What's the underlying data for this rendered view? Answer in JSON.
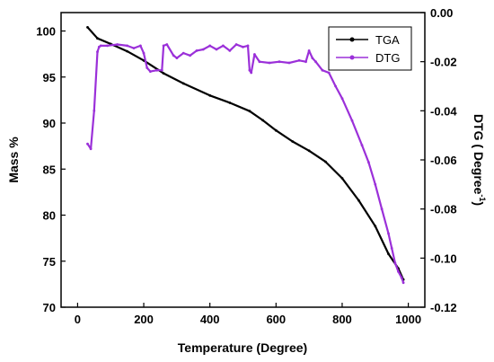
{
  "chart_data": {
    "type": "line",
    "xlabel": "Temperature (Degree)",
    "ylabel_left": "Mass %",
    "ylabel_right": "DTG ( Degree",
    "ylabel_right_sup": "-1",
    "ylabel_right_close": ")",
    "xlim": [
      -50,
      1050
    ],
    "ylim_left": [
      70,
      102
    ],
    "ylim_right": [
      -0.12,
      0.0
    ],
    "x_ticks": [
      0,
      200,
      400,
      600,
      800,
      1000
    ],
    "y_left_ticks": [
      70,
      75,
      80,
      85,
      90,
      95,
      100
    ],
    "y_right_ticks": [
      0.0,
      -0.02,
      -0.04,
      -0.06,
      -0.08,
      -0.1,
      -0.12
    ],
    "x_tick_labels": [
      "0",
      "200",
      "400",
      "600",
      "800",
      "1000"
    ],
    "y_left_tick_labels": [
      "70",
      "75",
      "80",
      "85",
      "90",
      "95",
      "100"
    ],
    "y_right_tick_labels": [
      "0.00",
      "-0.02",
      "-0.04",
      "-0.06",
      "-0.08",
      "-0.10",
      "-0.12"
    ],
    "legend": {
      "placement": "top-right",
      "items": [
        "TGA",
        "DTG"
      ]
    },
    "grid": false,
    "series": [
      {
        "name": "TGA",
        "axis": "left",
        "color": "#000000",
        "x": [
          30,
          60,
          100,
          150,
          200,
          260,
          320,
          400,
          460,
          520,
          560,
          600,
          650,
          700,
          750,
          800,
          850,
          900,
          940,
          970,
          985
        ],
        "y": [
          100.4,
          99.2,
          98.6,
          97.8,
          96.8,
          95.4,
          94.3,
          93.0,
          92.2,
          91.3,
          90.3,
          89.2,
          88.0,
          87.0,
          85.8,
          84.0,
          81.6,
          78.8,
          75.8,
          74.2,
          73.0
        ]
      },
      {
        "name": "DTG",
        "axis": "right",
        "color": "#9b30d9",
        "x": [
          30,
          40,
          50,
          60,
          65,
          70,
          90,
          120,
          150,
          170,
          190,
          200,
          210,
          220,
          240,
          255,
          260,
          270,
          290,
          300,
          320,
          340,
          360,
          380,
          400,
          420,
          440,
          460,
          480,
          500,
          515,
          520,
          525,
          535,
          550,
          580,
          610,
          640,
          670,
          690,
          700,
          710,
          720,
          740,
          760,
          780,
          800,
          830,
          860,
          880,
          900,
          920,
          940,
          950,
          960,
          970,
          980,
          985
        ],
        "y": [
          -0.0535,
          -0.0555,
          -0.04,
          -0.016,
          -0.014,
          -0.0135,
          -0.0135,
          -0.013,
          -0.0135,
          -0.0145,
          -0.0135,
          -0.0165,
          -0.0225,
          -0.024,
          -0.0235,
          -0.0235,
          -0.0135,
          -0.013,
          -0.0175,
          -0.0185,
          -0.0165,
          -0.0175,
          -0.0155,
          -0.015,
          -0.0135,
          -0.015,
          -0.0135,
          -0.0155,
          -0.013,
          -0.014,
          -0.0135,
          -0.0235,
          -0.0245,
          -0.017,
          -0.02,
          -0.0205,
          -0.02,
          -0.0205,
          -0.0195,
          -0.02,
          -0.0155,
          -0.0185,
          -0.02,
          -0.0235,
          -0.0245,
          -0.03,
          -0.035,
          -0.044,
          -0.054,
          -0.061,
          -0.07,
          -0.08,
          -0.09,
          -0.096,
          -0.102,
          -0.1055,
          -0.108,
          -0.11
        ]
      }
    ]
  }
}
